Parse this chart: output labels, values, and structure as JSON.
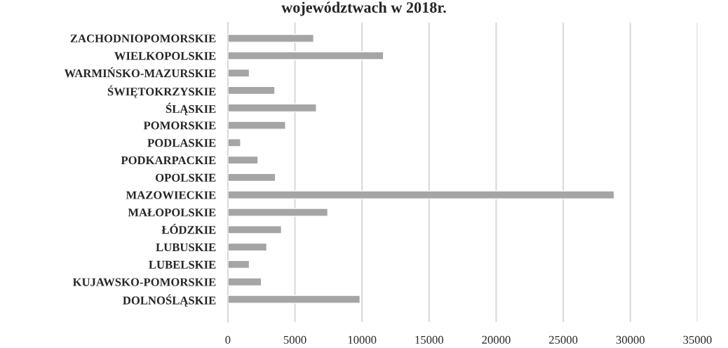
{
  "chart_data": {
    "type": "bar",
    "orientation": "horizontal",
    "title": "województwach w 2018r.",
    "categories": [
      "ZACHODNIOPOMORSKIE",
      "WIELKOPOLSKIE",
      "WARMIŃSKO-MAZURSKIE",
      "ŚWIĘTOKRZYSKIE",
      "ŚLĄSKIE",
      "POMORSKIE",
      "PODLASKIE",
      "PODKARPACKIE",
      "OPOLSKIE",
      "MAZOWIECKIE",
      "MAŁOPOLSKIE",
      "ŁÓDZKIE",
      "LUBUSKIE",
      "LUBELSKIE",
      "KUJAWSKO-POMORSKIE",
      "DOLNOŚLĄSKIE"
    ],
    "values": [
      6400,
      11600,
      1600,
      3500,
      6600,
      4300,
      950,
      2250,
      3550,
      28800,
      7450,
      4000,
      2900,
      1600,
      2500,
      9850
    ],
    "color": "#a5a5a5",
    "xlim": [
      0,
      35000
    ],
    "xticks": [
      0,
      5000,
      10000,
      15000,
      20000,
      25000,
      30000,
      35000
    ],
    "grid": "x"
  }
}
